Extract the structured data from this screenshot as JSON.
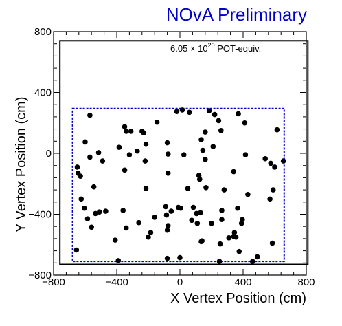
{
  "chart_data": {
    "type": "scatter",
    "banner": "NOvA Preliminary",
    "annotation": {
      "prefix": "6.05 × 10",
      "superscript": "20",
      "suffix": " POT-equiv."
    },
    "xlabel": "X Vertex Position (cm)",
    "ylabel": "Y Vertex Position (cm)",
    "xlim": [
      -800,
      800
    ],
    "ylim": [
      -800,
      800
    ],
    "xticks": [
      -800,
      -400,
      0,
      400,
      800
    ],
    "yticks": [
      -800,
      -400,
      0,
      400,
      800
    ],
    "xtick_labels": [
      "−800",
      "−400",
      "0",
      "400",
      "800"
    ],
    "ytick_labels": [
      "−800",
      "−400",
      "0",
      "400",
      "800"
    ],
    "fiducial_box": {
      "xmin": -680,
      "xmax": 660,
      "ymin": -710,
      "ymax": 295
    },
    "inner_frame": {
      "xmin": -760,
      "xmax": 810,
      "ymin": -730,
      "ymax": 740
    },
    "grid": false,
    "colors": {
      "banner": "#0000cc",
      "fiducial": "#0000cc",
      "points": "#000000",
      "axes": "#000000"
    },
    "points": [
      [
        -655,
        -635
      ],
      [
        -650,
        -90
      ],
      [
        -645,
        -130
      ],
      [
        -630,
        -150
      ],
      [
        -625,
        -300
      ],
      [
        -605,
        -360
      ],
      [
        -600,
        75
      ],
      [
        -585,
        -430
      ],
      [
        -570,
        250
      ],
      [
        -570,
        -25
      ],
      [
        -560,
        -485
      ],
      [
        -545,
        -220
      ],
      [
        -535,
        -395
      ],
      [
        -515,
        5
      ],
      [
        -510,
        -385
      ],
      [
        -490,
        -50
      ],
      [
        -470,
        -380
      ],
      [
        -410,
        -570
      ],
      [
        -390,
        -705
      ],
      [
        -385,
        40
      ],
      [
        -360,
        -375
      ],
      [
        -350,
        175
      ],
      [
        -350,
        -110
      ],
      [
        -340,
        -490
      ],
      [
        -340,
        145
      ],
      [
        -320,
        -10
      ],
      [
        -310,
        145
      ],
      [
        -270,
        15
      ],
      [
        -260,
        -455
      ],
      [
        -240,
        145
      ],
      [
        -230,
        135
      ],
      [
        -220,
        -50
      ],
      [
        -215,
        -230
      ],
      [
        -215,
        60
      ],
      [
        -200,
        -550
      ],
      [
        -185,
        -520
      ],
      [
        -160,
        -420
      ],
      [
        -145,
        205
      ],
      [
        -90,
        -350
      ],
      [
        -85,
        -405
      ],
      [
        -80,
        70
      ],
      [
        -80,
        -690
      ],
      [
        -80,
        -505
      ],
      [
        -75,
        -475
      ],
      [
        -75,
        -5
      ],
      [
        -75,
        -130
      ],
      [
        -55,
        -380
      ],
      [
        -20,
        275
      ],
      [
        -10,
        -355
      ],
      [
        0,
        -685
      ],
      [
        5,
        -360
      ],
      [
        15,
        285
      ],
      [
        25,
        -10
      ],
      [
        50,
        -230
      ],
      [
        60,
        270
      ],
      [
        75,
        -440
      ],
      [
        85,
        -355
      ],
      [
        105,
        -395
      ],
      [
        110,
        -460
      ],
      [
        120,
        -145
      ],
      [
        125,
        -170
      ],
      [
        130,
        -390
      ],
      [
        135,
        90
      ],
      [
        135,
        -580
      ],
      [
        140,
        -575
      ],
      [
        145,
        20
      ],
      [
        160,
        -40
      ],
      [
        160,
        140
      ],
      [
        165,
        -225
      ],
      [
        185,
        280
      ],
      [
        200,
        -460
      ],
      [
        210,
        45
      ],
      [
        220,
        255
      ],
      [
        245,
        215
      ],
      [
        250,
        -710
      ],
      [
        255,
        -595
      ],
      [
        260,
        150
      ],
      [
        265,
        -375
      ],
      [
        265,
        -435
      ],
      [
        280,
        -240
      ],
      [
        310,
        -555
      ],
      [
        340,
        -545
      ],
      [
        340,
        -120
      ],
      [
        345,
        -520
      ],
      [
        355,
        -550
      ],
      [
        365,
        -360
      ],
      [
        370,
        260
      ],
      [
        375,
        -645
      ],
      [
        390,
        -460
      ],
      [
        395,
        -435
      ],
      [
        410,
        200
      ],
      [
        415,
        -10
      ],
      [
        430,
        -270
      ],
      [
        460,
        -710
      ],
      [
        490,
        -680
      ],
      [
        540,
        -35
      ],
      [
        570,
        -300
      ],
      [
        575,
        -65
      ],
      [
        585,
        -590
      ],
      [
        590,
        -240
      ],
      [
        600,
        -90
      ],
      [
        615,
        155
      ],
      [
        655,
        -50
      ]
    ]
  }
}
